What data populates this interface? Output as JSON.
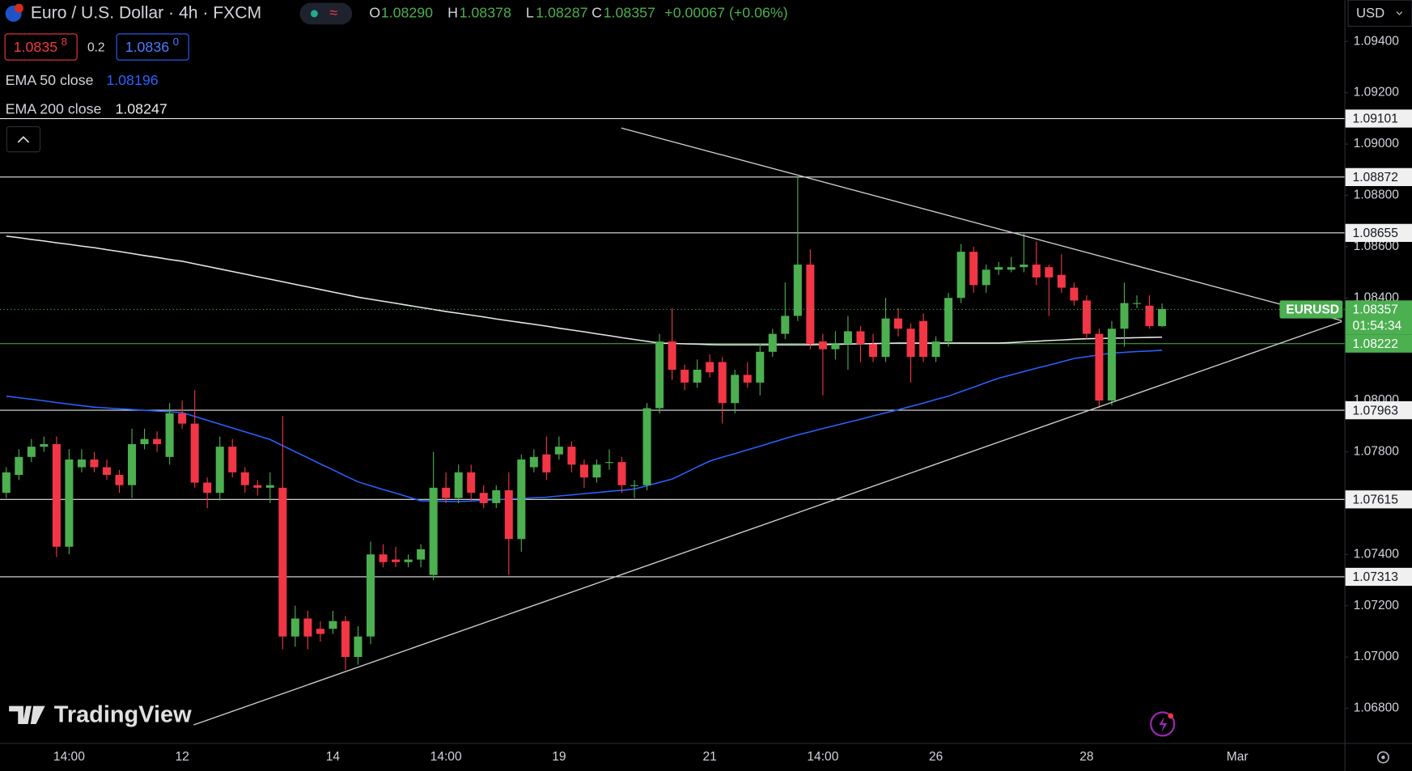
{
  "chart_data": {
    "type": "candlestick",
    "title": "Euro / U.S. Dollar · 4h · FXCM",
    "header": {
      "o_label": "O",
      "o": "1.08290",
      "h_label": "H",
      "h": "1.08378",
      "l_label": "L",
      "l": "1.08287",
      "c_label": "C",
      "c": "1.08357",
      "change": "+0.00067 (+0.06%)"
    },
    "quote": {
      "bid": "1.0835",
      "bid_pip": "8",
      "spread": "0.2",
      "ask": "1.0836",
      "ask_pip": "0"
    },
    "currency": "USD",
    "symbol": "EURUSD",
    "countdown": "01:54:34",
    "logo": "TradingView",
    "up_color": "#4caf50",
    "down_color": "#f23645",
    "categories": [
      null,
      null,
      null,
      null,
      null,
      "14:00",
      null,
      null,
      null,
      null,
      null,
      null,
      null,
      null,
      "12",
      null,
      null,
      null,
      null,
      null,
      null,
      null,
      null,
      null,
      null,
      null,
      "14",
      null,
      null,
      null,
      null,
      null,
      null,
      null,
      null,
      "14:00",
      null,
      null,
      null,
      null,
      null,
      null,
      null,
      null,
      "19",
      null,
      null,
      null,
      null,
      null,
      null,
      null,
      null,
      null,
      null,
      null,
      "21",
      null,
      null,
      null,
      null,
      null,
      null,
      null,
      null,
      "14:00",
      null,
      null,
      null,
      null,
      null,
      null,
      null,
      null,
      "26",
      null,
      null,
      null,
      null,
      null,
      null,
      null,
      null,
      null,
      null,
      null,
      "28",
      null,
      null,
      null,
      null,
      null,
      null,
      null,
      null,
      null,
      null,
      null,
      "Mar"
    ],
    "open": [
      1.0764,
      1.0771,
      1.0778,
      1.0782,
      1.0783,
      1.0743,
      1.0774,
      1.0777,
      1.0774,
      1.0771,
      1.0767,
      1.0783,
      1.0785,
      1.0778,
      1.0795,
      1.0791,
      1.0768,
      1.0764,
      1.0782,
      1.0772,
      1.0767,
      1.0766,
      1.0766,
      1.0708,
      1.0715,
      1.0711,
      1.0711,
      1.0714,
      1.07,
      1.0708,
      1.074,
      1.0738,
      1.0737,
      1.0738,
      1.0732,
      1.0766,
      1.0762,
      1.0772,
      1.0764,
      1.076,
      1.0765,
      1.0746,
      1.0774,
      1.0779,
      1.0779,
      1.0782,
      1.0775,
      1.077,
      1.0776,
      1.0776,
      1.0767,
      1.0767,
      1.0797,
      1.0823,
      1.0812,
      1.0807,
      1.0815,
      1.0815,
      1.0799,
      1.081,
      1.0807,
      1.0819,
      1.0826,
      1.0833,
      1.0853,
      1.0823,
      1.082,
      1.0822,
      1.0827,
      1.0822,
      1.0817,
      1.0832,
      1.0828,
      1.0831,
      1.0817,
      1.0823,
      1.084,
      1.0858,
      1.0845,
      1.0851,
      1.0851,
      1.0852,
      1.0853,
      1.0852,
      1.0849,
      1.0844,
      1.0839,
      1.0826,
      1.08,
      1.0828,
      1.0838,
      1.0837,
      1.0829,
      null,
      null,
      null,
      null,
      null,
      null
    ],
    "high": [
      1.0774,
      1.0781,
      1.0785,
      1.0786,
      1.0786,
      1.0781,
      1.0781,
      1.078,
      1.0777,
      1.0773,
      1.0789,
      1.0789,
      1.0788,
      1.0799,
      1.08,
      1.0804,
      1.077,
      1.0786,
      1.0785,
      1.0774,
      1.0769,
      1.0772,
      1.0794,
      1.072,
      1.0718,
      1.0714,
      1.0718,
      1.0716,
      1.0712,
      1.0745,
      1.0744,
      1.0743,
      1.074,
      1.0744,
      1.078,
      1.0772,
      1.0775,
      1.0775,
      1.0767,
      1.0767,
      1.0772,
      1.0779,
      1.0781,
      1.0786,
      1.0786,
      1.0784,
      1.0777,
      1.0777,
      1.0781,
      1.0778,
      1.0769,
      1.0799,
      1.0826,
      1.0836,
      1.0814,
      1.0816,
      1.0818,
      1.0817,
      1.0812,
      1.0815,
      1.0822,
      1.0828,
      1.0846,
      1.0887,
      1.0859,
      1.0826,
      1.0827,
      1.0833,
      1.0829,
      1.0826,
      1.084,
      1.0836,
      1.083,
      1.0834,
      1.0825,
      1.0842,
      1.0861,
      1.086,
      1.0853,
      1.0854,
      1.0856,
      1.0865,
      1.0862,
      1.0853,
      1.0857,
      1.0846,
      1.0841,
      1.0828,
      1.0831,
      1.0846,
      1.0841,
      1.0841,
      1.08378,
      null,
      null,
      null,
      null,
      null,
      null
    ],
    "low": [
      1.0762,
      1.0769,
      1.0776,
      1.078,
      1.0739,
      1.074,
      1.0772,
      1.0772,
      1.0769,
      1.0764,
      1.0762,
      1.0781,
      1.078,
      1.0775,
      1.0789,
      1.0766,
      1.0758,
      1.0761,
      1.077,
      1.0764,
      1.0763,
      1.076,
      1.0703,
      1.0704,
      1.0703,
      1.0706,
      1.0709,
      1.0695,
      1.0697,
      1.0705,
      1.0735,
      1.0735,
      1.0735,
      1.0735,
      1.073,
      1.076,
      1.076,
      1.0761,
      1.0758,
      1.0758,
      1.0732,
      1.0741,
      1.0772,
      1.0769,
      1.0777,
      1.0772,
      1.0766,
      1.0768,
      1.0773,
      1.0764,
      1.0762,
      1.0765,
      1.0795,
      1.0808,
      1.0804,
      1.0805,
      1.0809,
      1.0791,
      1.0795,
      1.0805,
      1.0802,
      1.0817,
      1.0824,
      1.0831,
      1.082,
      1.0802,
      1.0816,
      1.0812,
      1.0815,
      1.0815,
      1.0815,
      1.0825,
      1.0807,
      1.0815,
      1.0815,
      1.0821,
      1.0838,
      1.0842,
      1.0842,
      1.0849,
      1.085,
      1.085,
      1.0845,
      1.0833,
      1.0842,
      1.0837,
      1.0824,
      1.0797,
      1.0798,
      1.0821,
      1.0836,
      1.0828,
      1.08287,
      null,
      null,
      null,
      null,
      null,
      null
    ],
    "close": [
      1.0772,
      1.0778,
      1.0782,
      1.0783,
      1.0743,
      1.0777,
      1.0777,
      1.0774,
      1.0771,
      1.0767,
      1.0783,
      1.0785,
      1.0783,
      1.0795,
      1.0791,
      1.0768,
      1.0764,
      1.0782,
      1.0772,
      1.0767,
      1.0766,
      1.0767,
      1.0708,
      1.0715,
      1.0708,
      1.0709,
      1.0714,
      1.07,
      1.0708,
      1.074,
      1.0737,
      1.0737,
      1.0738,
      1.0742,
      1.0766,
      1.0762,
      1.0772,
      1.0764,
      1.076,
      1.0765,
      1.0746,
      1.0777,
      1.0778,
      1.0772,
      1.0782,
      1.0775,
      1.077,
      1.0775,
      1.0776,
      1.0767,
      1.0767,
      1.0797,
      1.0823,
      1.0812,
      1.0807,
      1.0812,
      1.0811,
      1.0799,
      1.081,
      1.0807,
      1.0819,
      1.0826,
      1.0833,
      1.0853,
      1.0822,
      1.082,
      1.0822,
      1.0827,
      1.0822,
      1.0817,
      1.0832,
      1.0828,
      1.0817,
      1.0817,
      1.0823,
      1.084,
      1.0858,
      1.0845,
      1.0851,
      1.0852,
      1.0852,
      1.0853,
      1.0848,
      1.0848,
      1.0844,
      1.0839,
      1.0826,
      1.08,
      1.0828,
      1.0838,
      1.0838,
      1.0829,
      1.08357,
      null,
      null,
      null,
      null,
      null,
      null
    ],
    "series": [
      {
        "name": "EMA 50 close",
        "color": "#2962ff",
        "legend_value": "1.08196",
        "values": [
          1.08017,
          1.08011,
          1.08005,
          1.07999,
          1.07992,
          1.07986,
          1.0798,
          1.07974,
          1.07971,
          1.07968,
          1.07965,
          1.07962,
          1.07959,
          1.07956,
          1.07953,
          1.07938,
          1.07923,
          1.07908,
          1.07893,
          1.07878,
          1.07863,
          1.07848,
          1.07824,
          1.078,
          1.07777,
          1.07753,
          1.0773,
          1.07706,
          1.07683,
          1.07668,
          1.07653,
          1.07639,
          1.07624,
          1.07609,
          1.07608,
          1.07607,
          1.07606,
          1.07608,
          1.07611,
          1.07613,
          1.07616,
          1.07618,
          1.07621,
          1.07623,
          1.07628,
          1.07632,
          1.07637,
          1.07641,
          1.07646,
          1.0765,
          1.07655,
          1.07668,
          1.07681,
          1.07694,
          1.07717,
          1.07741,
          1.07764,
          1.07779,
          1.07793,
          1.07808,
          1.07822,
          1.07837,
          1.07852,
          1.07866,
          1.07878,
          1.07891,
          1.07903,
          1.07915,
          1.07927,
          1.0794,
          1.07952,
          1.07964,
          1.07977,
          1.0799,
          1.08004,
          1.08017,
          1.08035,
          1.08052,
          1.0807,
          1.08087,
          1.081,
          1.08113,
          1.08126,
          1.08138,
          1.08151,
          1.08164,
          1.08171,
          1.08178,
          1.08185,
          1.08188,
          1.08191,
          1.08193,
          1.08196,
          null,
          null,
          null,
          null,
          null,
          null
        ]
      },
      {
        "name": "EMA 200 close",
        "color": "#e8e8e8",
        "legend_value": "1.08247",
        "values": [
          1.08641,
          1.08635,
          1.08628,
          1.08622,
          1.08615,
          1.08609,
          1.08602,
          1.08596,
          1.08588,
          1.08581,
          1.08573,
          1.08565,
          1.08558,
          1.0855,
          1.08543,
          1.08533,
          1.08523,
          1.08513,
          1.08503,
          1.08493,
          1.08483,
          1.08473,
          1.08463,
          1.08453,
          1.08443,
          1.08433,
          1.08423,
          1.08413,
          1.08403,
          1.08395,
          1.08387,
          1.08379,
          1.08371,
          1.08363,
          1.08355,
          1.08347,
          1.0834,
          1.08333,
          1.08326,
          1.08318,
          1.08311,
          1.08304,
          1.08297,
          1.0829,
          1.08282,
          1.08275,
          1.08268,
          1.0826,
          1.08253,
          1.08245,
          1.08238,
          1.08231,
          1.08224,
          1.08223,
          1.08221,
          1.0822,
          1.08218,
          1.08217,
          1.08217,
          1.08217,
          1.08217,
          1.08217,
          1.08217,
          1.08217,
          1.08217,
          1.08218,
          1.08219,
          1.0822,
          1.08221,
          1.08222,
          1.08223,
          1.08224,
          1.08224,
          1.08224,
          1.08224,
          1.08224,
          1.08224,
          1.08224,
          1.08224,
          1.08224,
          1.08226,
          1.08229,
          1.08231,
          1.08234,
          1.08236,
          1.08239,
          1.08241,
          1.08242,
          1.08243,
          1.08244,
          1.08245,
          1.08246,
          1.08247,
          null,
          null,
          null,
          null,
          null,
          null
        ]
      }
    ],
    "levels": [
      1.09101,
      1.08872,
      1.08655,
      1.07963,
      1.07615,
      1.07313
    ],
    "green_level": 1.08222,
    "ylim": [
      1.06665,
      1.09561
    ],
    "yticks": [
      {
        "value": 1.094,
        "label": "1.09400"
      },
      {
        "value": 1.092,
        "label": "1.09200"
      },
      {
        "value": 1.09,
        "label": "1.09000"
      },
      {
        "value": 1.088,
        "label": "1.08800"
      },
      {
        "value": 1.086,
        "label": "1.08600"
      },
      {
        "value": 1.084,
        "label": "1.08400"
      },
      {
        "value": 1.08,
        "label": "1.08000"
      },
      {
        "value": 1.078,
        "label": "1.07800"
      },
      {
        "value": 1.074,
        "label": "1.07400"
      },
      {
        "value": 1.072,
        "label": "1.07200"
      },
      {
        "value": 1.07,
        "label": "1.07000"
      },
      {
        "value": 1.068,
        "label": "1.06800"
      }
    ],
    "grid": false
  }
}
